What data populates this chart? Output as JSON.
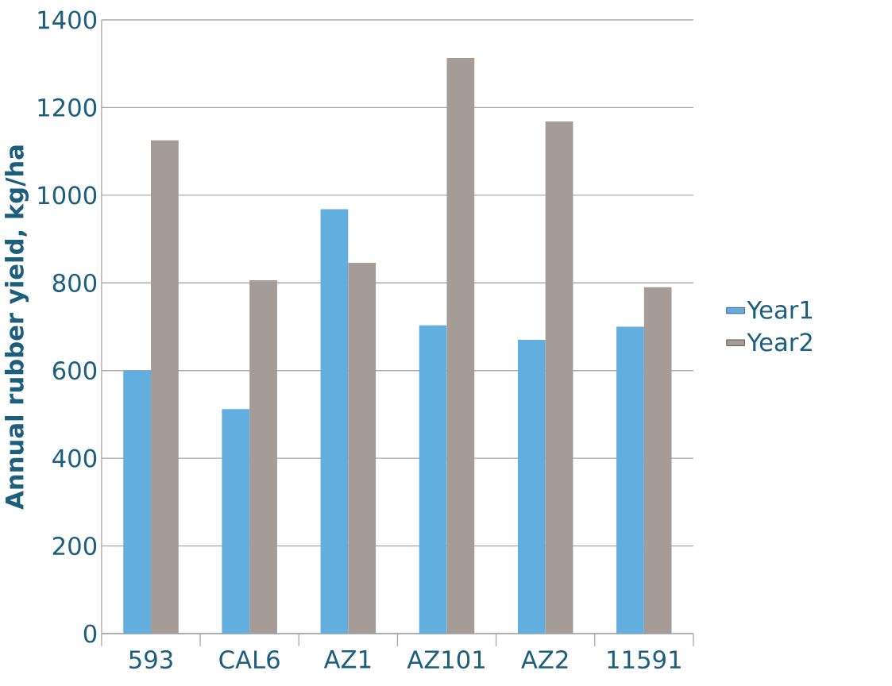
{
  "chart_data": {
    "type": "bar",
    "ylabel": "Annual rubber yield, kg/ha",
    "categories": [
      "593",
      "CAL6",
      "AZ1",
      "AZ101",
      "AZ2",
      "11591"
    ],
    "series": [
      {
        "name": "Year1",
        "color": "#62aedf",
        "values": [
          600,
          512,
          968,
          703,
          670,
          700
        ]
      },
      {
        "name": "Year2",
        "color": "#a59c97",
        "values": [
          1125,
          806,
          846,
          1313,
          1168,
          790
        ]
      }
    ],
    "ylim": [
      0,
      1400
    ],
    "yticks": [
      0,
      200,
      400,
      600,
      800,
      1000,
      1200,
      1400
    ],
    "grid": "y",
    "legend": "right"
  }
}
